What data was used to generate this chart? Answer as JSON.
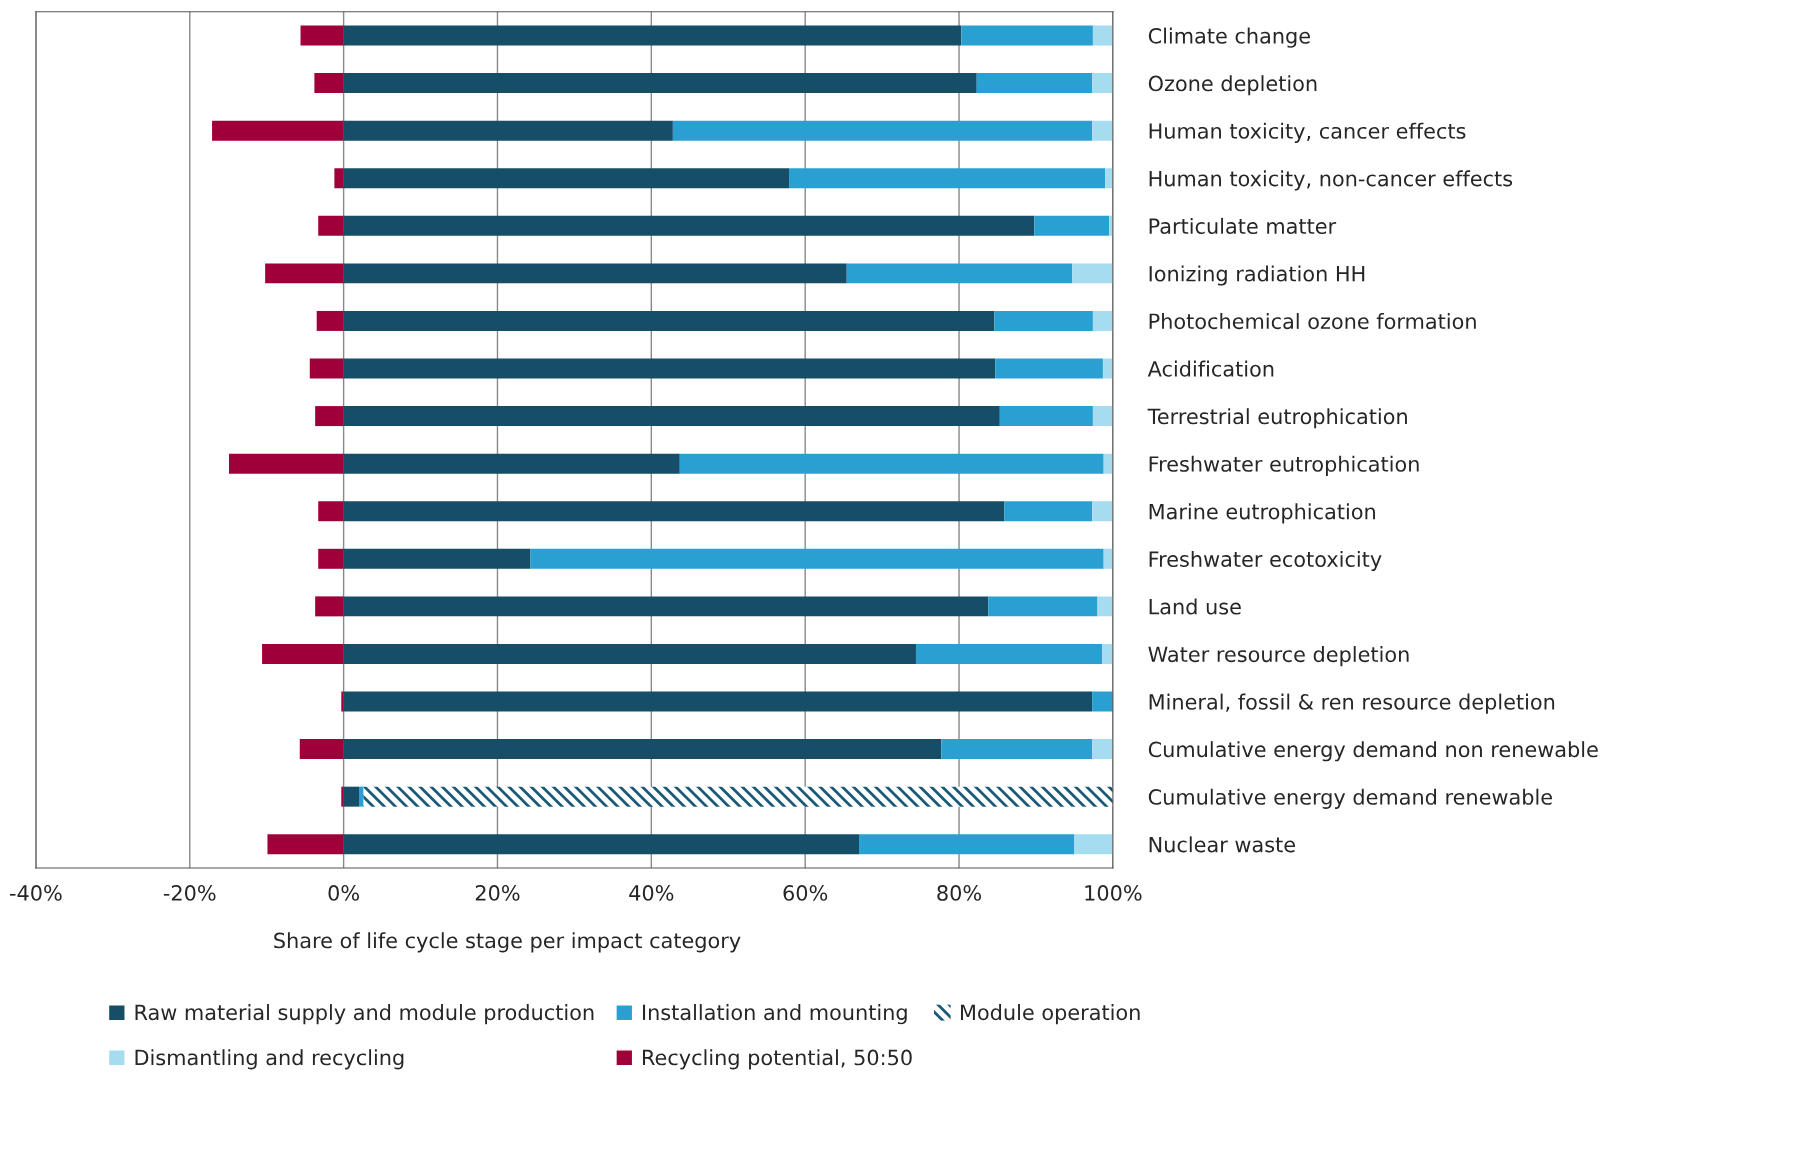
{
  "chart_data": {
    "type": "bar",
    "orientation": "horizontal",
    "stacked": true,
    "xlabel": "Share of life cycle stage per impact category",
    "categories": [
      "Climate change",
      "Ozone depletion",
      "Human toxicity, cancer effects",
      "Human toxicity, non-cancer effects",
      "Particulate matter",
      "Ionizing radiation HH",
      "Photochemical ozone formation",
      "Acidification",
      "Terrestrial eutrophication",
      "Freshwater eutrophication",
      "Marine eutrophication",
      "Freshwater ecotoxicity",
      "Land use",
      "Water resource depletion",
      "Mineral, fossil & ren resource depletion",
      "Cumulative energy demand non renewable",
      "Cumulative energy demand renewable",
      "Nuclear waste"
    ],
    "series": [
      {
        "name": "Raw material supply and module production",
        "color": "#154e66",
        "values": [
          80.3,
          82.3,
          42.8,
          57.9,
          89.8,
          65.4,
          84.6,
          84.7,
          85.3,
          43.7,
          85.9,
          24.3,
          83.8,
          74.4,
          97.3,
          77.7,
          2.0,
          67.0
        ]
      },
      {
        "name": "Installation and mounting",
        "color": "#2aa0d2",
        "values": [
          17.1,
          15.0,
          54.5,
          41.1,
          9.7,
          29.3,
          12.8,
          14.0,
          12.1,
          55.1,
          11.4,
          74.5,
          14.2,
          24.2,
          2.7,
          19.6,
          0.6,
          28.0
        ]
      },
      {
        "name": "Module operation",
        "color": "#1a5a78",
        "line_style": "dashed",
        "values": [
          0,
          0,
          0,
          0,
          0,
          0,
          0,
          0,
          0,
          0,
          0,
          0,
          0,
          0,
          0,
          0,
          97.4,
          0
        ]
      },
      {
        "name": "Dismantling and recycling",
        "color": "#a6dcf0",
        "values": [
          2.6,
          2.7,
          2.7,
          1.0,
          0.5,
          5.3,
          2.6,
          1.3,
          2.6,
          1.2,
          2.7,
          1.2,
          2.0,
          1.4,
          0,
          2.7,
          0,
          5.0
        ]
      },
      {
        "name": "Recycling potential, 50:50",
        "color": "#a0003a",
        "values": [
          -5.6,
          -3.8,
          -17.1,
          -1.2,
          -3.3,
          -10.2,
          -3.5,
          -4.4,
          -3.7,
          -14.9,
          -3.3,
          -3.3,
          -3.7,
          -10.6,
          -0.3,
          -5.7,
          -0.3,
          -9.9
        ]
      }
    ],
    "xlim": [
      -40,
      100
    ],
    "xticks": [
      {
        "value": -40,
        "label": "-40%"
      },
      {
        "value": -20,
        "label": "-20%"
      },
      {
        "value": 0,
        "label": "0%"
      },
      {
        "value": 20,
        "label": "20%"
      },
      {
        "value": 40,
        "label": "40%"
      },
      {
        "value": 60,
        "label": "60%"
      },
      {
        "value": 80,
        "label": "80%"
      },
      {
        "value": 100,
        "label": "100%"
      }
    ],
    "grid": "x",
    "legend": "bottom"
  }
}
